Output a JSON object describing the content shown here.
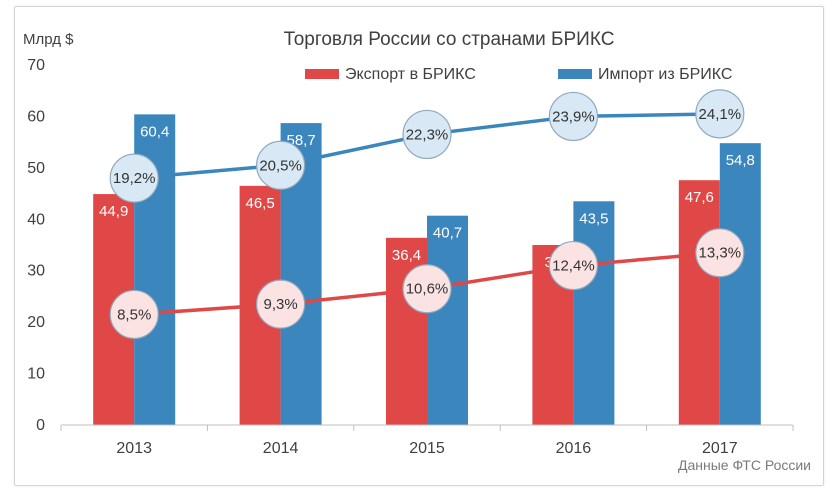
{
  "chart_data": {
    "type": "bar",
    "title": "Торговля России со странами БРИКС",
    "unit_label": "Млрд $",
    "categories": [
      "2013",
      "2014",
      "2015",
      "2016",
      "2017"
    ],
    "ylim": [
      0,
      70
    ],
    "yticks": [
      "0",
      "10",
      "20",
      "30",
      "40",
      "50",
      "60",
      "70"
    ],
    "grid": false,
    "legend_position": "top",
    "series": [
      {
        "name": "Экспорт в БРИКС",
        "color": "#e04848",
        "values": [
          44.9,
          46.5,
          36.4,
          35,
          47.6
        ],
        "labels": [
          "44,9",
          "46,5",
          "36,4",
          "35",
          "47,6"
        ]
      },
      {
        "name": "Импорт из БРИКС",
        "color": "#3a86bd",
        "values": [
          60.4,
          58.7,
          40.7,
          43.5,
          54.8
        ],
        "labels": [
          "60,4",
          "58,7",
          "40,7",
          "43,5",
          "54,8"
        ]
      }
    ],
    "share_lines": [
      {
        "color": "#e04848",
        "marker_fill": "#fbe3e3",
        "labels": [
          "8,5%",
          "9,3%",
          "10,6%",
          "12,4%",
          "13,3%"
        ],
        "y_positions": [
          21.5,
          23.5,
          26.5,
          31,
          33.5
        ]
      },
      {
        "color": "#3a86bd",
        "marker_fill": "#d8e8f5",
        "labels": [
          "19,2%",
          "20,5%",
          "22,3%",
          "23,9%",
          "24,1%"
        ],
        "y_positions": [
          48,
          50.5,
          56.5,
          60,
          60.5
        ]
      }
    ],
    "source_note": "Данные ФТС России"
  }
}
